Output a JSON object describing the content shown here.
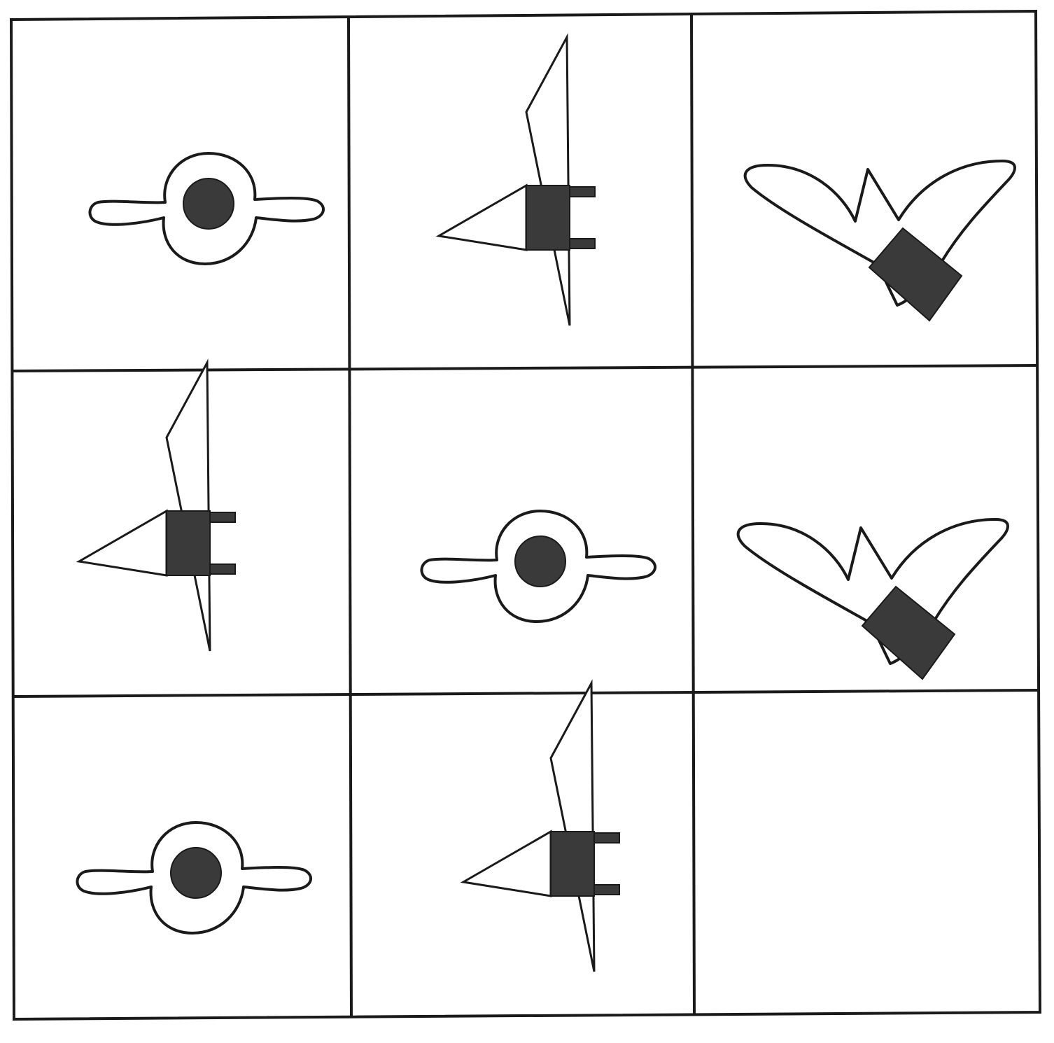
{
  "puzzle": {
    "rows": 3,
    "cols": 3,
    "cells": [
      {
        "row": 1,
        "col": 1,
        "shape": "disc-with-handles"
      },
      {
        "row": 1,
        "col": 2,
        "shape": "triangle-arrow-with-plug"
      },
      {
        "row": 1,
        "col": 3,
        "shape": "zigzag-wing-with-block"
      },
      {
        "row": 2,
        "col": 1,
        "shape": "triangle-arrow-with-plug"
      },
      {
        "row": 2,
        "col": 2,
        "shape": "disc-with-handles"
      },
      {
        "row": 2,
        "col": 3,
        "shape": "zigzag-wing-with-block"
      },
      {
        "row": 3,
        "col": 1,
        "shape": "disc-with-handles"
      },
      {
        "row": 3,
        "col": 2,
        "shape": "triangle-arrow-with-plug"
      },
      {
        "row": 3,
        "col": 3,
        "shape": "empty"
      }
    ],
    "colors": {
      "line": "#1a1a1a",
      "fill_dark": "#3a3a3a",
      "background": "#ffffff"
    }
  }
}
